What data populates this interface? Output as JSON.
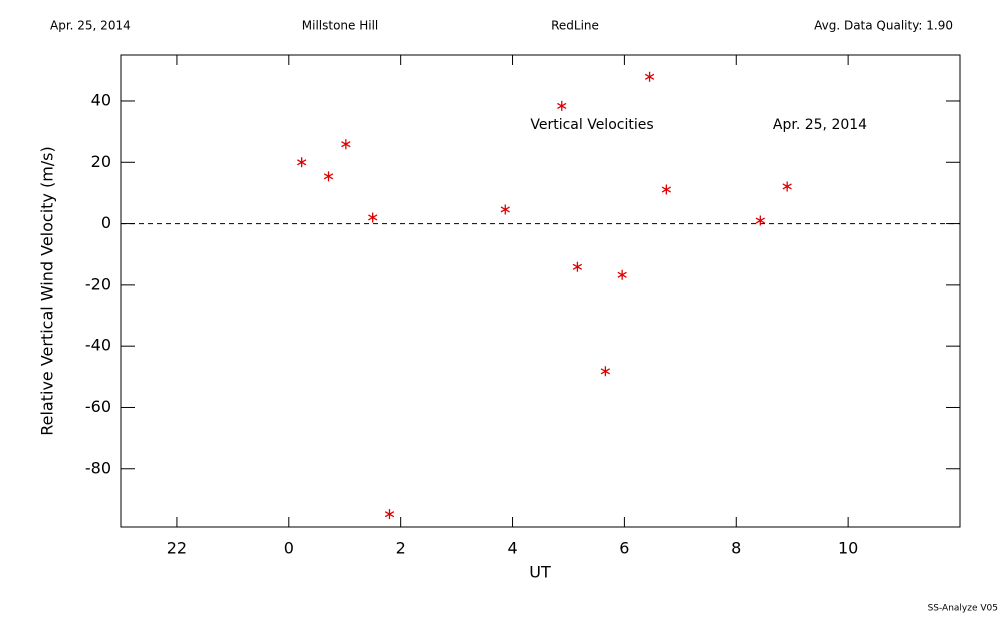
{
  "chart_data": {
    "type": "scatter",
    "header": [
      "Apr. 25, 2014",
      "Millstone Hill",
      "RedLine",
      "Avg. Data Quality: 1.90"
    ],
    "annotations": [
      "Vertical Velocities",
      "Apr. 25, 2014"
    ],
    "footer": "SS-Analyze V05",
    "x_label": "UT",
    "y_label": "Relative Vertical Wind Velocity (m/s)",
    "xlim": [
      21,
      36
    ],
    "xticks": [
      22,
      {
        "value": 24,
        "label": "0"
      },
      {
        "value": 26,
        "label": "2"
      },
      {
        "value": 28,
        "label": "4"
      },
      {
        "value": 30,
        "label": "6"
      },
      {
        "value": 32,
        "label": "8"
      },
      {
        "value": 34,
        "label": "10"
      }
    ],
    "ylim": [
      -99,
      55
    ],
    "yticks": [
      40,
      20,
      0,
      -20,
      -40,
      -60,
      -80
    ],
    "zero_line": 0,
    "color": "#e00000",
    "x": [
      24.23,
      24.71,
      25.02,
      25.5,
      25.8,
      27.87,
      28.88,
      29.16,
      29.66,
      29.96,
      30.45,
      30.75,
      32.43,
      32.91
    ],
    "values": [
      20,
      15.4,
      25.9,
      2,
      -94.8,
      4.6,
      38.4,
      -14.1,
      -48.2,
      -16.7,
      47.9,
      11.1,
      1,
      12.1
    ]
  }
}
